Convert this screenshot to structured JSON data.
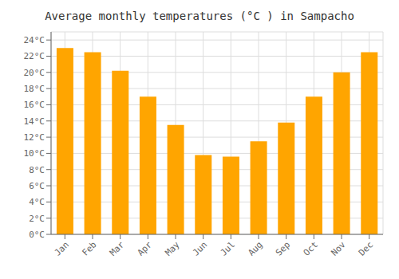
{
  "chart_data": {
    "type": "bar",
    "title": "Average monthly temperatures (°C ) in Sampacho",
    "categories": [
      "Jan",
      "Feb",
      "Mar",
      "Apr",
      "May",
      "Jun",
      "Jul",
      "Aug",
      "Sep",
      "Oct",
      "Nov",
      "Dec"
    ],
    "values": [
      23.0,
      22.5,
      20.2,
      17.0,
      13.5,
      9.8,
      9.6,
      11.5,
      13.8,
      17.0,
      20.0,
      22.5
    ],
    "color": "#FFA500",
    "ylim": [
      0,
      25
    ],
    "yticks": [
      {
        "value": 0,
        "label": "0°C"
      },
      {
        "value": 2,
        "label": "2°C"
      },
      {
        "value": 4,
        "label": "4°C"
      },
      {
        "value": 6,
        "label": "6°C"
      },
      {
        "value": 8,
        "label": "8°C"
      },
      {
        "value": 10,
        "label": "10°C"
      },
      {
        "value": 12,
        "label": "12°C"
      },
      {
        "value": 14,
        "label": "14°C"
      },
      {
        "value": 16,
        "label": "16°C"
      },
      {
        "value": 18,
        "label": "18°C"
      },
      {
        "value": 20,
        "label": "20°C"
      },
      {
        "value": 22,
        "label": "22°C"
      },
      {
        "value": 24,
        "label": "24°C"
      }
    ],
    "grid": true
  }
}
